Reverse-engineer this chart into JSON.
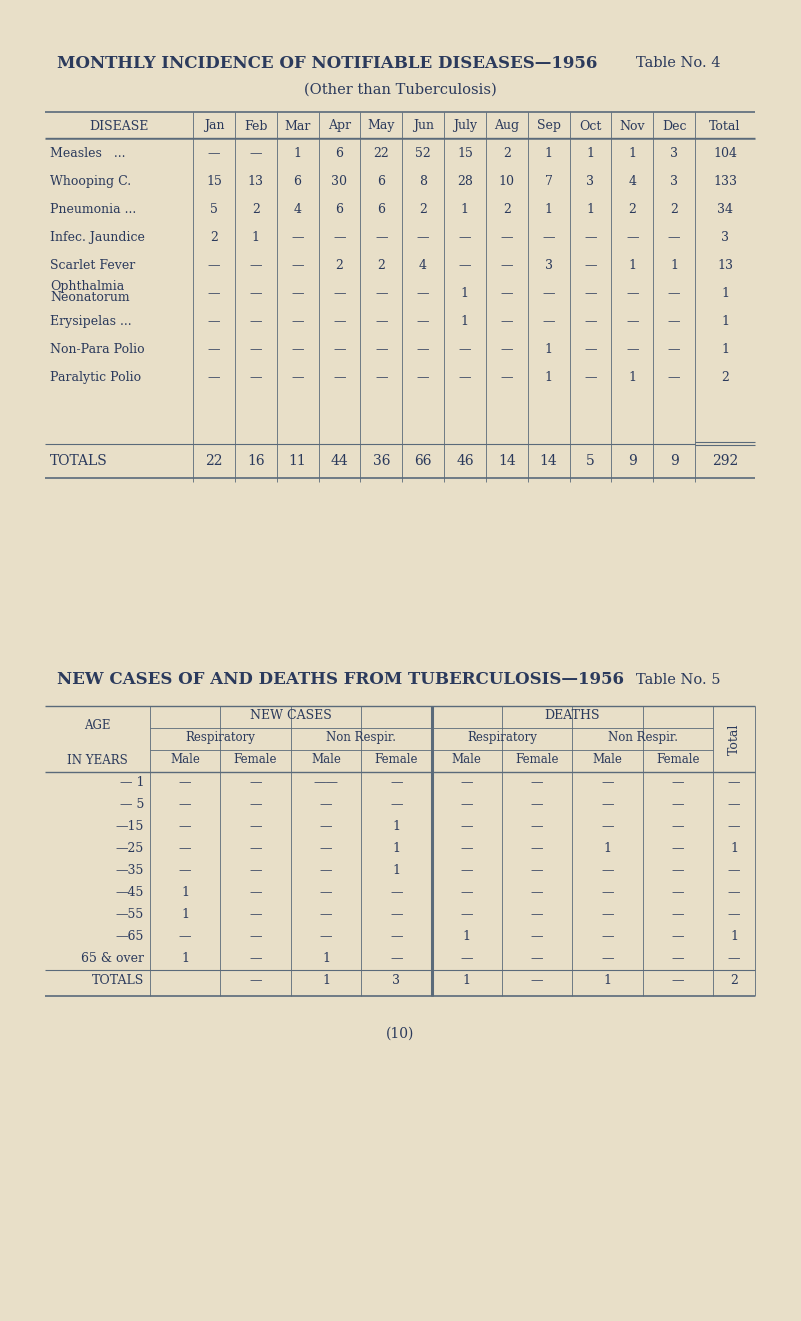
{
  "bg_color": "#e8dfc8",
  "text_color": "#2b3a5c",
  "line_color": "#5a6a7a",
  "title1": "MONTHLY INCIDENCE OF NOTIFIABLE DISEASES—1956",
  "table_no1": "Table No. 4",
  "subtitle1": "(Other than Tuberculosis)",
  "title2": "NEW CASES OF AND DEATHS FROM TUBERCULOSIS—1956",
  "table_no2": "Table No. 5",
  "t1_headers": [
    "DISEASE",
    "Jan",
    "Feb",
    "Mar",
    "Apr",
    "May",
    "Jun",
    "July",
    "Aug",
    "Sep",
    "Oct",
    "Nov",
    "Dec",
    "Total"
  ],
  "t1_rows": [
    [
      "Measles   ...",
      "—",
      "—",
      "1",
      "6",
      "22",
      "52",
      "15",
      "2",
      "1",
      "1",
      "1",
      "3",
      "104"
    ],
    [
      "Whooping C.",
      "15",
      "13",
      "6",
      "30",
      "6",
      "8",
      "28",
      "10",
      "7",
      "3",
      "4",
      "3",
      "133"
    ],
    [
      "Pneumonia ...",
      "5",
      "2",
      "4",
      "6",
      "6",
      "2",
      "1",
      "2",
      "1",
      "1",
      "2",
      "2",
      "34"
    ],
    [
      "Infec. Jaundice",
      "2",
      "1",
      "—",
      "—",
      "—",
      "—",
      "—",
      "—",
      "—",
      "—",
      "—",
      "—",
      "3"
    ],
    [
      "Scarlet Fever",
      "—",
      "—",
      "—",
      "2",
      "2",
      "4",
      "—",
      "—",
      "3",
      "—",
      "1",
      "1",
      "13"
    ],
    [
      "Ophthalmia\nNeonatorum",
      "—",
      "—",
      "—",
      "—",
      "—",
      "—",
      "1",
      "—",
      "—",
      "—",
      "—",
      "—",
      "1"
    ],
    [
      "Erysipelas ...",
      "—",
      "—",
      "—",
      "—",
      "—",
      "—",
      "1",
      "—",
      "—",
      "—",
      "—",
      "—",
      "1"
    ],
    [
      "Non-Para Polio",
      "—",
      "—",
      "—",
      "—",
      "—",
      "—",
      "—",
      "—",
      "1",
      "—",
      "—",
      "—",
      "1"
    ],
    [
      "Paralytic Polio",
      "—",
      "—",
      "—",
      "—",
      "—",
      "—",
      "—",
      "—",
      "1",
      "—",
      "1",
      "—",
      "2"
    ]
  ],
  "t1_totals": [
    "TOTALS",
    "22",
    "16",
    "11",
    "44",
    "36",
    "66",
    "46",
    "14",
    "14",
    "5",
    "9",
    "9",
    "292"
  ],
  "t2_age_groups": [
    "— 1",
    "— 5",
    "—15",
    "—25",
    "—35",
    "—45",
    "—55",
    "—65",
    "65 & over",
    "TOTALS"
  ],
  "t2_new_resp_male": [
    "—",
    "—",
    "—",
    "—",
    "—",
    "1",
    "1",
    "—",
    "1",
    ""
  ],
  "t2_new_resp_female": [
    "—",
    "—",
    "—",
    "—",
    "—",
    "—",
    "—",
    "—",
    "—",
    "—"
  ],
  "t2_new_nonr_male": [
    "——",
    "—",
    "—",
    "—",
    "—",
    "—",
    "—",
    "—",
    "1",
    "1"
  ],
  "t2_new_nonr_female": [
    "—",
    "—",
    "1",
    "1",
    "1",
    "—",
    "—",
    "—",
    "—",
    "3"
  ],
  "t2_dth_resp_male": [
    "—",
    "—",
    "—",
    "—",
    "—",
    "—",
    "—",
    "1",
    "—",
    "1"
  ],
  "t2_dth_resp_female": [
    "—",
    "—",
    "—",
    "—",
    "—",
    "—",
    "—",
    "—",
    "—",
    "—"
  ],
  "t2_dth_nonr_male": [
    "—",
    "—",
    "—",
    "1",
    "—",
    "—",
    "—",
    "—",
    "—",
    "1"
  ],
  "t2_dth_nonr_female": [
    "—",
    "—",
    "—",
    "—",
    "—",
    "—",
    "—",
    "—",
    "—",
    "—"
  ],
  "t2_total": [
    "—",
    "—",
    "—",
    "1",
    "—",
    "—",
    "—",
    "1",
    "—",
    "2"
  ],
  "page_number": "(10)"
}
